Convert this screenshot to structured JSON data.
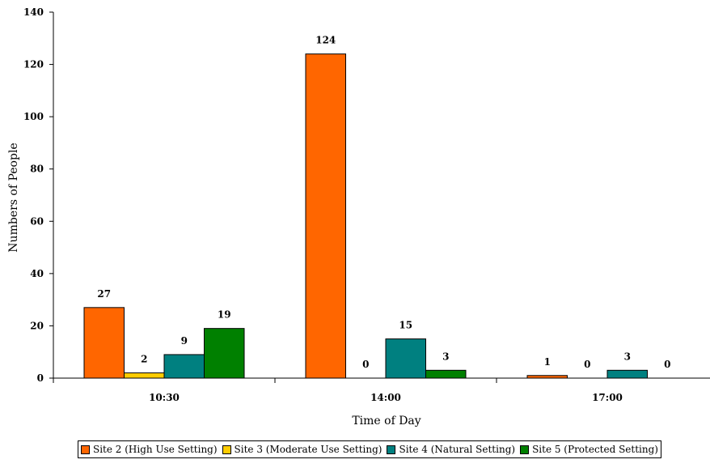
{
  "chart_data": {
    "type": "bar",
    "categories": [
      "10:30",
      "14:00",
      "17:00"
    ],
    "series": [
      {
        "name": "Site 2 (High Use Setting)",
        "values": [
          27,
          124,
          1
        ],
        "color": "#ff6600"
      },
      {
        "name": "Site 3 (Moderate Use Setting)",
        "values": [
          2,
          0,
          0
        ],
        "color": "#ffcc00"
      },
      {
        "name": "Site 4 (Natural Setting)",
        "values": [
          9,
          15,
          3
        ],
        "color": "#008080"
      },
      {
        "name": "Site 5 (Protected Setting)",
        "values": [
          19,
          3,
          0
        ],
        "color": "#008000"
      }
    ],
    "data_labels": [
      [
        "27",
        "2",
        "9",
        "19"
      ],
      [
        "124",
        "0",
        "15",
        "3"
      ],
      [
        "1",
        "0",
        "3",
        "0"
      ]
    ],
    "xlabel": "Time of Day",
    "ylabel": "Numbers of People",
    "ylim": [
      0,
      140
    ],
    "yticks": [
      0,
      20,
      40,
      60,
      80,
      100,
      120,
      140
    ],
    "grid": false,
    "legend_position": "bottom"
  }
}
